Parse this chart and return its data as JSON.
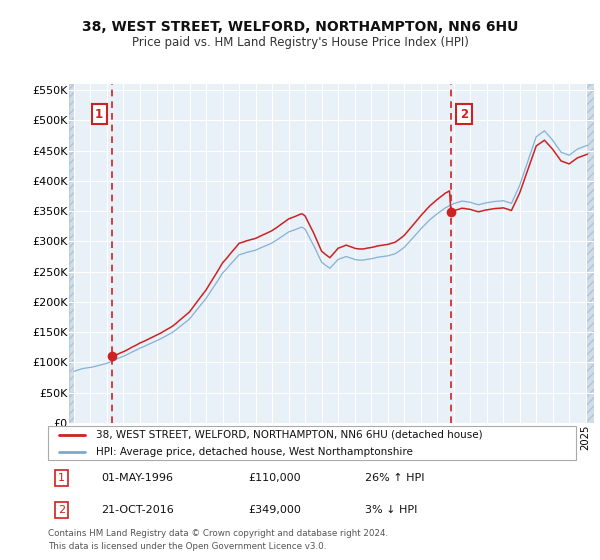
{
  "title1": "38, WEST STREET, WELFORD, NORTHAMPTON, NN6 6HU",
  "title2": "Price paid vs. HM Land Registry's House Price Index (HPI)",
  "legend_line1": "38, WEST STREET, WELFORD, NORTHAMPTON, NN6 6HU (detached house)",
  "legend_line2": "HPI: Average price, detached house, West Northamptonshire",
  "footer": "Contains HM Land Registry data © Crown copyright and database right 2024.\nThis data is licensed under the Open Government Licence v3.0.",
  "sale1_year": 1996.33,
  "sale1_price": 110000,
  "sale2_year": 2016.83,
  "sale2_price": 349000,
  "price_line_color": "#cc2222",
  "hpi_line_color": "#7aaad0",
  "sale_dot_color": "#cc2222",
  "vline_color": "#cc2222",
  "annotation_box_color": "#cc2222",
  "bg_color": "#e8f0f8",
  "hatch_bg": "#d0dce8",
  "grid_color": "#ffffff",
  "ylim": [
    0,
    560000
  ],
  "yticks": [
    0,
    50000,
    100000,
    150000,
    200000,
    250000,
    300000,
    350000,
    400000,
    450000,
    500000,
    550000
  ],
  "ytick_labels": [
    "£0",
    "£50K",
    "£100K",
    "£150K",
    "£200K",
    "£250K",
    "£300K",
    "£350K",
    "£400K",
    "£450K",
    "£500K",
    "£550K"
  ],
  "xlim_start": 1993.7,
  "xlim_end": 2025.5,
  "hatch_right_start": 2025.0
}
